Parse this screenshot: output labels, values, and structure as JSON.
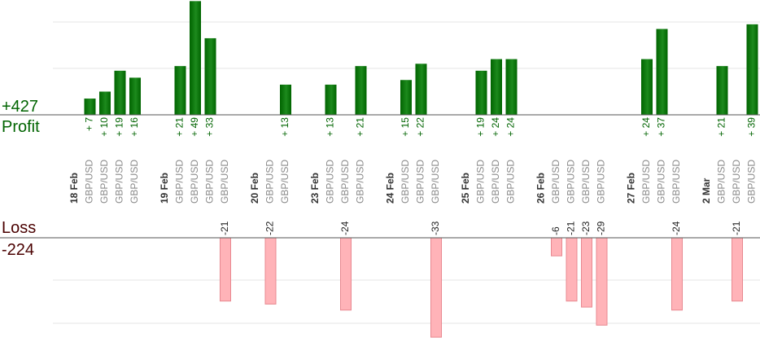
{
  "profit": {
    "total_label": "+427",
    "title": "Profit"
  },
  "loss": {
    "title": "Loss",
    "total_label": "-224"
  },
  "colors": {
    "profit": "#006400",
    "profit_light": "#1d8a1d",
    "loss": "#ffb3b8",
    "loss_stroke": "#e88890",
    "axis": "#555555",
    "grid": "#e6e6e6",
    "loss_title": "#4a0000"
  },
  "chart_data": {
    "type": "bar",
    "pair": "GBP/USD",
    "dates": [
      "18 Feb",
      "19 Feb",
      "20 Feb",
      "23 Feb",
      "24 Feb",
      "25 Feb",
      "26 Feb",
      "27 Feb",
      "2 Mar"
    ],
    "slots": [
      {
        "kind": "date",
        "date": "18 Feb"
      },
      {
        "kind": "trade",
        "value": 7,
        "label": "+ 7"
      },
      {
        "kind": "trade",
        "value": 10,
        "label": "+ 10"
      },
      {
        "kind": "trade",
        "value": 19,
        "label": "+ 19"
      },
      {
        "kind": "trade",
        "value": 16,
        "label": "+ 16"
      },
      {
        "kind": "gap"
      },
      {
        "kind": "date",
        "date": "19 Feb"
      },
      {
        "kind": "trade",
        "value": 21,
        "label": "+ 21"
      },
      {
        "kind": "trade",
        "value": 49,
        "label": "+ 49"
      },
      {
        "kind": "trade",
        "value": 33,
        "label": "+ 33"
      },
      {
        "kind": "trade",
        "value": -21,
        "label": "-21"
      },
      {
        "kind": "gap"
      },
      {
        "kind": "date",
        "date": "20 Feb"
      },
      {
        "kind": "trade",
        "value": -22,
        "label": "-22"
      },
      {
        "kind": "trade",
        "value": 13,
        "label": "+ 13"
      },
      {
        "kind": "gap"
      },
      {
        "kind": "date",
        "date": "23 Feb"
      },
      {
        "kind": "trade",
        "value": 13,
        "label": "+ 13"
      },
      {
        "kind": "trade",
        "value": -24,
        "label": "-24"
      },
      {
        "kind": "trade",
        "value": 21,
        "label": "+ 21"
      },
      {
        "kind": "gap"
      },
      {
        "kind": "date",
        "date": "24 Feb"
      },
      {
        "kind": "trade",
        "value": 15,
        "label": "+ 15"
      },
      {
        "kind": "trade",
        "value": 22,
        "label": "+ 22"
      },
      {
        "kind": "trade",
        "value": -33,
        "label": "-33"
      },
      {
        "kind": "gap"
      },
      {
        "kind": "date",
        "date": "25 Feb"
      },
      {
        "kind": "trade",
        "value": 19,
        "label": "+ 19"
      },
      {
        "kind": "trade",
        "value": 24,
        "label": "+ 24"
      },
      {
        "kind": "trade",
        "value": 24,
        "label": "+ 24"
      },
      {
        "kind": "gap"
      },
      {
        "kind": "date",
        "date": "26 Feb"
      },
      {
        "kind": "trade",
        "value": -6,
        "label": "-6"
      },
      {
        "kind": "trade",
        "value": -21,
        "label": "-21"
      },
      {
        "kind": "trade",
        "value": -23,
        "label": "-23"
      },
      {
        "kind": "trade",
        "value": -29,
        "label": "-29"
      },
      {
        "kind": "gap"
      },
      {
        "kind": "date",
        "date": "27 Feb"
      },
      {
        "kind": "trade",
        "value": 24,
        "label": "+ 24"
      },
      {
        "kind": "trade",
        "value": 37,
        "label": "+ 37"
      },
      {
        "kind": "trade",
        "value": -24,
        "label": "-24"
      },
      {
        "kind": "gap"
      },
      {
        "kind": "date",
        "date": "2 Mar"
      },
      {
        "kind": "trade",
        "value": 21,
        "label": "+ 21"
      },
      {
        "kind": "trade",
        "value": -21,
        "label": "-21"
      },
      {
        "kind": "trade",
        "value": 39,
        "label": "+ 39"
      }
    ]
  }
}
